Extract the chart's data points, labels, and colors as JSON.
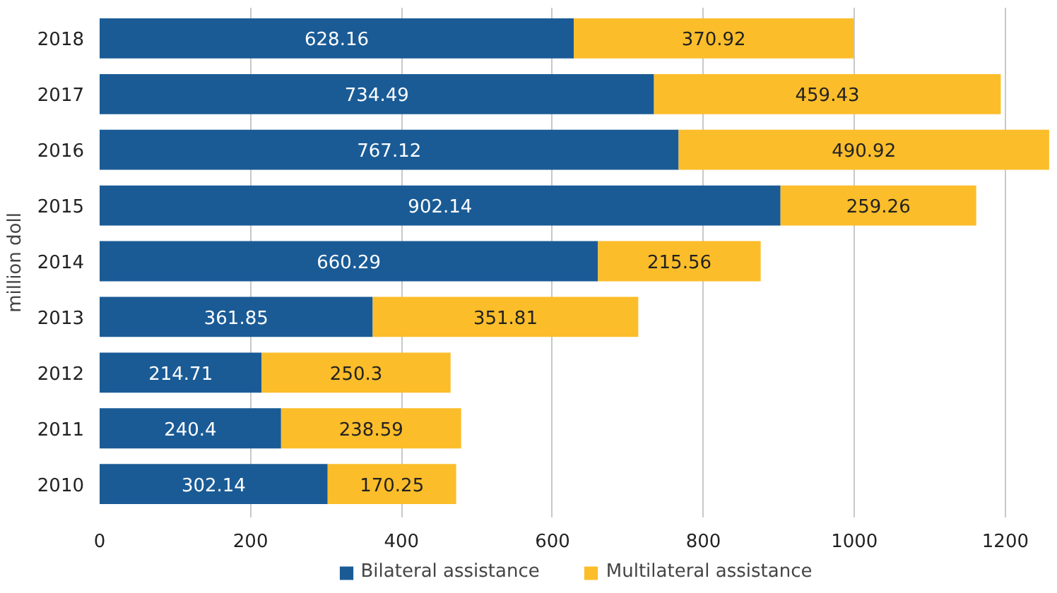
{
  "chart_data": {
    "type": "bar",
    "orientation": "horizontal",
    "stacked": true,
    "ylabel": "million doll",
    "categories": [
      "2018",
      "2017",
      "2016",
      "2015",
      "2014",
      "2013",
      "2012",
      "2011",
      "2010"
    ],
    "series": [
      {
        "name": "Bilateral assistance",
        "color": "#1a5b96",
        "values": [
          628.16,
          734.49,
          767.12,
          902.14,
          660.29,
          361.85,
          214.71,
          240.4,
          302.14
        ]
      },
      {
        "name": "Multilateral assistance",
        "color": "#fbbd2a",
        "values": [
          370.92,
          459.43,
          490.92,
          259.26,
          215.56,
          351.81,
          250.3,
          238.59,
          170.25
        ]
      }
    ],
    "xlim": [
      0,
      1260
    ],
    "xticks": [
      0,
      200,
      400,
      600,
      800,
      1000,
      1200
    ],
    "grid": "x",
    "legend": "bottom",
    "data_labels": true
  }
}
